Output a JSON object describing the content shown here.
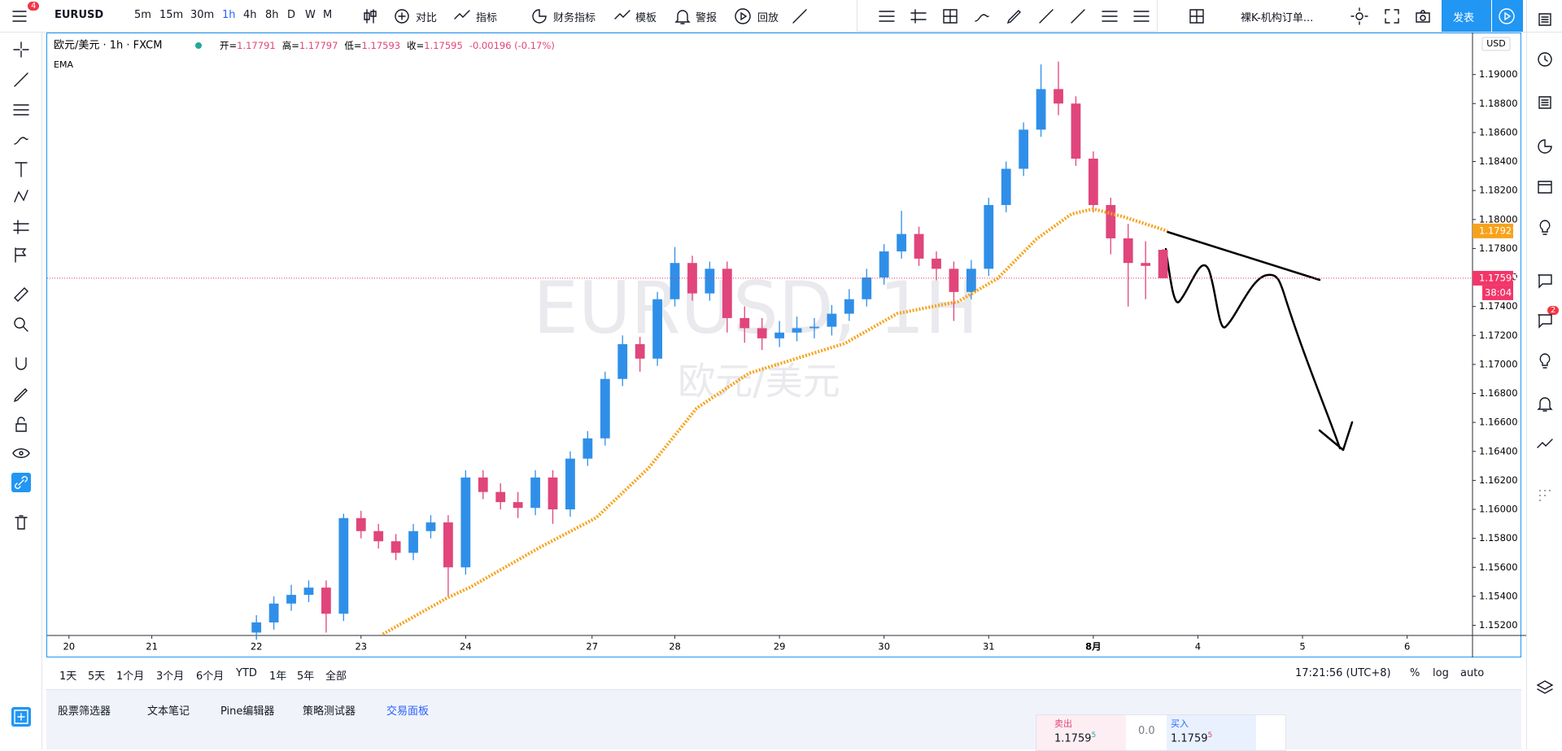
{
  "toolbar": {
    "symbol": "EURUSD",
    "badge": "4",
    "intervals": [
      "5m",
      "15m",
      "30m",
      "1h",
      "4h",
      "8h",
      "D",
      "W",
      "M"
    ],
    "buttons": [
      "对比",
      "指标",
      "财务指标",
      "模板",
      "警报",
      "回放"
    ],
    "layout_name": "裸K-机构订单...",
    "publish": "发表"
  },
  "chart_data": {
    "type": "candlestick",
    "symbol_line": "欧元/美元 · 1h · FXCM",
    "ohlc": [
      {
        "label": "开=",
        "value": "1.17791"
      },
      {
        "label": "高=",
        "value": "1.17797"
      },
      {
        "label": "低=",
        "value": "1.17593"
      },
      {
        "label": "收=",
        "value": "1.17595"
      }
    ],
    "change": "-0.00196 (-0.17%)",
    "watermark": "EURUSD, 1H",
    "watermark_sub": "欧元/美元",
    "currency": "USD",
    "up_color": "#2f8fe8",
    "down_color": "#e0457b",
    "xlim": [
      0,
      327
    ],
    "ylim": [
      1.1513,
      1.1929
    ],
    "grid": false,
    "xticks": [
      {
        "value": 5,
        "label": "20"
      },
      {
        "value": 24,
        "label": "21"
      },
      {
        "value": 48,
        "label": "22"
      },
      {
        "value": 72,
        "label": "23"
      },
      {
        "value": 96,
        "label": "24"
      },
      {
        "value": 125,
        "label": "27"
      },
      {
        "value": 144,
        "label": "28"
      },
      {
        "value": 168,
        "label": "29"
      },
      {
        "value": 192,
        "label": "30"
      },
      {
        "value": 216,
        "label": "31"
      },
      {
        "value": 240,
        "label": "8月"
      },
      {
        "value": 264,
        "label": "4"
      },
      {
        "value": 288,
        "label": "5"
      },
      {
        "value": 312,
        "label": "6"
      }
    ],
    "yticks": [
      {
        "value": 1.152,
        "label": "1.15200"
      },
      {
        "value": 1.154,
        "label": "1.15400"
      },
      {
        "value": 1.156,
        "label": "1.15600"
      },
      {
        "value": 1.158,
        "label": "1.15800"
      },
      {
        "value": 1.16,
        "label": "1.16000"
      },
      {
        "value": 1.162,
        "label": "1.16200"
      },
      {
        "value": 1.164,
        "label": "1.16400"
      },
      {
        "value": 1.166,
        "label": "1.16600"
      },
      {
        "value": 1.168,
        "label": "1.16800"
      },
      {
        "value": 1.17,
        "label": "1.17000"
      },
      {
        "value": 1.172,
        "label": "1.17200"
      },
      {
        "value": 1.174,
        "label": "1.17400"
      },
      {
        "value": 1.176,
        "label": "1.17600"
      },
      {
        "value": 1.178,
        "label": "1.17800"
      },
      {
        "value": 1.18,
        "label": "1.18000"
      },
      {
        "value": 1.182,
        "label": "1.18200"
      },
      {
        "value": 1.184,
        "label": "1.18400"
      },
      {
        "value": 1.186,
        "label": "1.18600"
      },
      {
        "value": 1.188,
        "label": "1.18800"
      },
      {
        "value": 1.19,
        "label": "1.19000"
      }
    ],
    "x": [
      48,
      52,
      56,
      60,
      64,
      68,
      72,
      76,
      80,
      84,
      88,
      92,
      96,
      100,
      104,
      108,
      112,
      116,
      120,
      124,
      128,
      132,
      136,
      140,
      144,
      148,
      152,
      156,
      160,
      164,
      168,
      172,
      176,
      180,
      184,
      188,
      192,
      196,
      200,
      204,
      208,
      212,
      216,
      220,
      224,
      228,
      232,
      236,
      240,
      244,
      248,
      252,
      256
    ],
    "open": [
      1.1515,
      1.1522,
      1.1535,
      1.1541,
      1.1546,
      1.1528,
      1.1594,
      1.1585,
      1.1578,
      1.157,
      1.1585,
      1.1591,
      1.156,
      1.1622,
      1.1612,
      1.1605,
      1.1601,
      1.1622,
      1.16,
      1.1635,
      1.1649,
      1.169,
      1.1714,
      1.1704,
      1.1745,
      1.177,
      1.1749,
      1.1766,
      1.1732,
      1.1725,
      1.1718,
      1.1722,
      1.1725,
      1.1726,
      1.1735,
      1.1745,
      1.176,
      1.1778,
      1.179,
      1.1773,
      1.1766,
      1.175,
      1.1766,
      1.181,
      1.1835,
      1.1862,
      1.189,
      1.188,
      1.1842,
      1.181,
      1.1787,
      1.177,
      1.17791
    ],
    "high": [
      1.1527,
      1.154,
      1.1548,
      1.1551,
      1.1551,
      1.1597,
      1.1599,
      1.159,
      1.1583,
      1.159,
      1.1596,
      1.1596,
      1.1627,
      1.1627,
      1.1618,
      1.1612,
      1.1627,
      1.1627,
      1.164,
      1.1654,
      1.1695,
      1.172,
      1.1719,
      1.175,
      1.1781,
      1.1775,
      1.1771,
      1.1771,
      1.174,
      1.1732,
      1.173,
      1.1733,
      1.1732,
      1.1741,
      1.1752,
      1.1766,
      1.1783,
      1.1806,
      1.1795,
      1.1778,
      1.1771,
      1.1772,
      1.1815,
      1.184,
      1.1867,
      1.1907,
      1.1909,
      1.1885,
      1.1847,
      1.1815,
      1.1797,
      1.1785,
      1.17797
    ],
    "low": [
      1.151,
      1.1517,
      1.153,
      1.1536,
      1.1515,
      1.1523,
      1.158,
      1.1573,
      1.1565,
      1.1565,
      1.158,
      1.154,
      1.1555,
      1.1607,
      1.16,
      1.1594,
      1.1596,
      1.159,
      1.1595,
      1.163,
      1.1644,
      1.1685,
      1.1695,
      1.1699,
      1.174,
      1.1744,
      1.1744,
      1.1722,
      1.1715,
      1.171,
      1.1712,
      1.1716,
      1.1718,
      1.172,
      1.173,
      1.174,
      1.1755,
      1.1773,
      1.1768,
      1.1758,
      1.173,
      1.1745,
      1.1761,
      1.1805,
      1.183,
      1.1857,
      1.1872,
      1.1837,
      1.1805,
      1.1776,
      1.174,
      1.1745,
      1.17593
    ],
    "close": [
      1.1522,
      1.1535,
      1.1541,
      1.1546,
      1.1528,
      1.1594,
      1.1585,
      1.1578,
      1.157,
      1.1585,
      1.1591,
      1.156,
      1.1622,
      1.1612,
      1.1605,
      1.1601,
      1.1622,
      1.16,
      1.1635,
      1.1649,
      1.169,
      1.1714,
      1.1704,
      1.1745,
      1.177,
      1.1749,
      1.1766,
      1.1732,
      1.1725,
      1.1718,
      1.1722,
      1.1725,
      1.1726,
      1.1735,
      1.1745,
      1.176,
      1.1778,
      1.179,
      1.1773,
      1.1766,
      1.175,
      1.1766,
      1.181,
      1.1835,
      1.1862,
      1.189,
      1.188,
      1.1842,
      1.181,
      1.1787,
      1.177,
      1.1768,
      1.17595
    ],
    "ema": {
      "name": "EMA",
      "color": "#f7a21b",
      "x": [
        77,
        92,
        97,
        113,
        126,
        138,
        149,
        161,
        172,
        183,
        195,
        209,
        218,
        227,
        235,
        240,
        247,
        257
      ],
      "values": [
        1.15139,
        1.15393,
        1.15462,
        1.15737,
        1.15943,
        1.16286,
        1.16698,
        1.16939,
        1.17042,
        1.17145,
        1.17351,
        1.17434,
        1.17592,
        1.17866,
        1.18038,
        1.18073,
        1.18018,
        1.17921
      ]
    },
    "price_tags": [
      {
        "label": "1.17921",
        "value": 1.17921,
        "color": "#f7a21b"
      },
      {
        "label": "1.17595",
        "value": 1.17595,
        "color": "#f23669"
      }
    ],
    "countdown": "38:04"
  },
  "range_bar": {
    "ranges": [
      "1天",
      "5天",
      "1个月",
      "3个月",
      "6个月",
      "YTD",
      "1年",
      "5年",
      "全部"
    ],
    "clock": "17:21:56 (UTC+8)",
    "scale_options": [
      "%",
      "log",
      "auto"
    ]
  },
  "bottom_panel": {
    "tabs": [
      "股票筛选器",
      "文本笔记",
      "Pine编辑器",
      "策略测试器",
      "交易面板"
    ]
  },
  "trade_panel": {
    "sell_label": "卖出",
    "sell_price": "1.1759",
    "sell_pip": "5",
    "spread": "0.0",
    "buy_label": "买入",
    "buy_price": "1.1759",
    "buy_pip": "5"
  },
  "notifications": {
    "badge": "2"
  }
}
